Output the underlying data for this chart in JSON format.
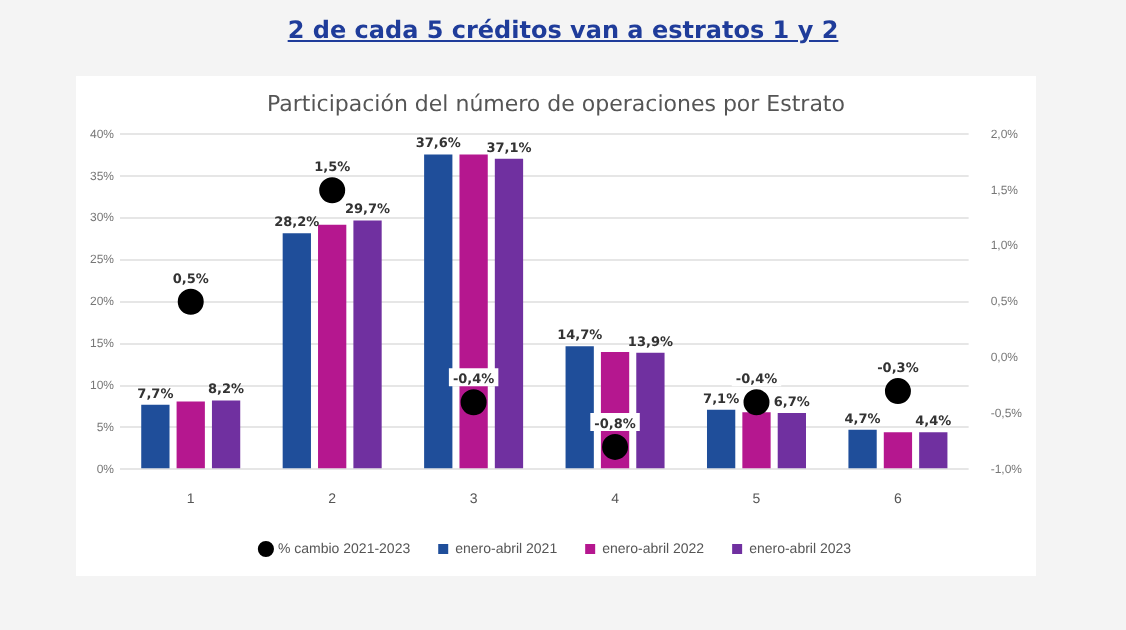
{
  "chart_data": {
    "type": "bar",
    "title": "2 de cada 5 créditos van a estratos 1 y 2",
    "subtitle": "Participación del número de operaciones por Estrato",
    "categories": [
      "1",
      "2",
      "3",
      "4",
      "5",
      "6"
    ],
    "series": [
      {
        "name": "enero-abril 2021",
        "color": "#1f4e9a",
        "values": [
          7.7,
          28.2,
          37.6,
          14.7,
          7.1,
          4.7
        ],
        "value_labels": [
          "7,7%",
          "28,2%",
          "37,6%",
          "14,7%",
          "7,1%",
          "4,7%"
        ]
      },
      {
        "name": "enero-abril 2022",
        "color": "#b5178f",
        "values": [
          8.1,
          29.2,
          37.6,
          14.0,
          6.8,
          4.4
        ]
      },
      {
        "name": "enero-abril 2023",
        "color": "#7030a0",
        "values": [
          8.2,
          29.7,
          37.1,
          13.9,
          6.7,
          4.4
        ],
        "value_labels": [
          "8,2%",
          "29,7%",
          "37,1%",
          "13,9%",
          "6,7%",
          "4,4%"
        ]
      },
      {
        "name": "% cambio 2021-2023",
        "type": "scatter",
        "axis": "y2",
        "color": "#000000",
        "values": [
          0.5,
          1.5,
          -0.4,
          -0.8,
          -0.4,
          -0.3
        ],
        "value_labels": [
          "0,5%",
          "1,5%",
          "-0,4%",
          "-0,8%",
          "-0,4%",
          "-0,3%"
        ]
      }
    ],
    "ylim": [
      0,
      40
    ],
    "yticks": [
      {
        "value": 0,
        "label": "0%"
      },
      {
        "value": 5,
        "label": "5%"
      },
      {
        "value": 10,
        "label": "10%"
      },
      {
        "value": 15,
        "label": "15%"
      },
      {
        "value": 20,
        "label": "20%"
      },
      {
        "value": 25,
        "label": "25%"
      },
      {
        "value": 30,
        "label": "30%"
      },
      {
        "value": 35,
        "label": "35%"
      },
      {
        "value": 40,
        "label": "40%"
      }
    ],
    "y2lim": [
      -1,
      2
    ],
    "y2ticks": [
      {
        "value": -1,
        "label": "-1,0%"
      },
      {
        "value": -0.5,
        "label": "-0,5%"
      },
      {
        "value": 0,
        "label": "0,0%"
      },
      {
        "value": 0.5,
        "label": "0,5%"
      },
      {
        "value": 1,
        "label": "1,0%"
      },
      {
        "value": 1.5,
        "label": "1,5%"
      },
      {
        "value": 2,
        "label": "2,0%"
      }
    ],
    "grid": "y",
    "legend": "bottom",
    "marker": "circle"
  }
}
